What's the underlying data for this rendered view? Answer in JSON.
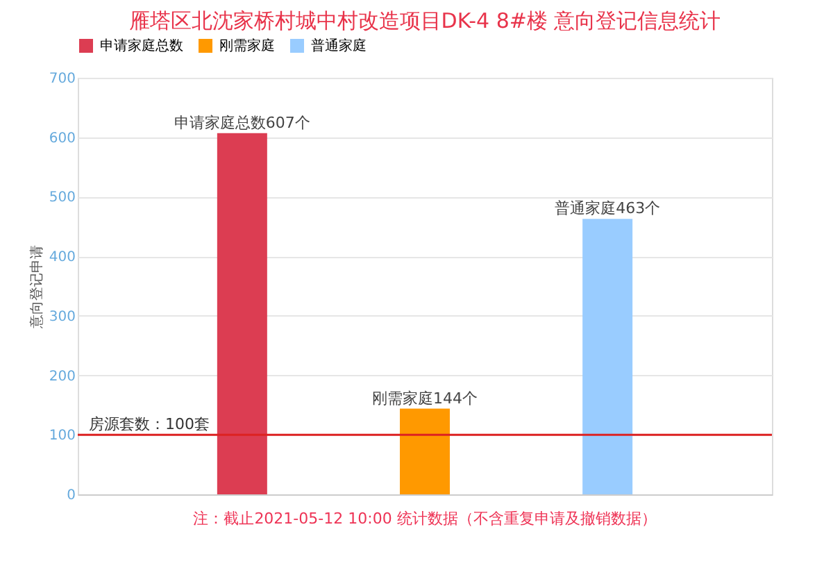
{
  "chart_data": {
    "type": "bar",
    "title": "雁塔区北沈家桥村城中村改造项目DK-4 8#楼 意向登记信息统计",
    "categories": [
      null,
      null,
      null
    ],
    "series": [
      {
        "name": "申请家庭总数",
        "color": "#dc3d52",
        "values": [
          607,
          null,
          null
        ],
        "value_labels": [
          "申请家庭总数607个",
          null,
          null
        ]
      },
      {
        "name": "刚需家庭",
        "color": "#ff9900",
        "values": [
          null,
          144,
          null
        ],
        "value_labels": [
          null,
          "刚需家庭144个",
          null
        ]
      },
      {
        "name": "普通家庭",
        "color": "#99ccff",
        "values": [
          null,
          null,
          463
        ],
        "value_labels": [
          null,
          null,
          "普通家庭463个"
        ]
      }
    ],
    "ylabel": "意向登记申请",
    "ylim": [
      0,
      700
    ],
    "yticks": [
      0,
      100,
      200,
      300,
      400,
      500,
      600,
      700
    ],
    "grid": "y",
    "legend": "top",
    "ref_lines": [
      {
        "axis": "y",
        "value": 100,
        "label": "房源套数：100套",
        "color": "#dd2222"
      }
    ],
    "annotations": [
      "注：截止2021-05-12 10:00 统计数据（不含重复申请及撤销数据）"
    ]
  }
}
